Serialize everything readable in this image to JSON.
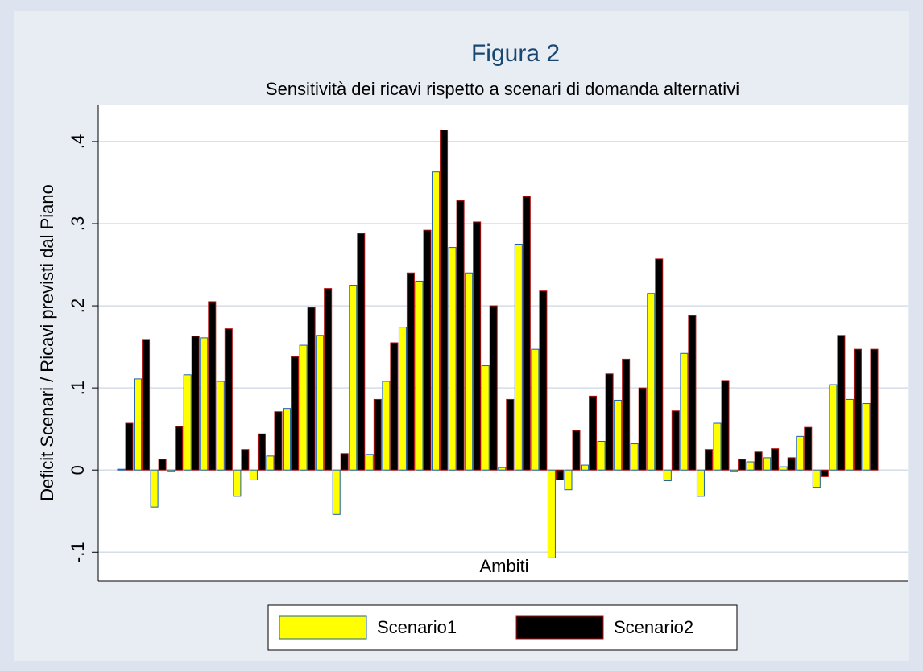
{
  "chart_data": {
    "type": "bar",
    "title": "Figura 2",
    "subtitle": "Sensitività dei ricavi rispetto a scenari di domanda alternativi",
    "y_label": "Deficit Scenari / Ricavi previsti dal Piano",
    "x_label": "Ambiti",
    "categories": [
      null,
      null,
      null,
      null,
      null,
      null,
      null,
      null,
      null,
      null,
      null,
      null,
      null,
      null,
      null,
      null,
      null,
      null,
      null,
      null,
      null,
      null,
      null,
      null,
      null,
      null,
      null,
      null,
      null,
      null,
      null,
      null,
      null,
      null,
      null,
      null,
      null,
      null,
      null,
      null,
      null,
      null,
      null,
      null,
      null,
      null
    ],
    "series": [
      {
        "name": "Scenario1",
        "color": "#ffff00",
        "values": [
          0.001,
          0.111,
          -0.045,
          -0.002,
          0.116,
          0.161,
          0.108,
          -0.032,
          -0.012,
          0.017,
          0.075,
          0.152,
          0.164,
          -0.054,
          0.225,
          0.019,
          0.108,
          0.174,
          0.23,
          0.363,
          0.271,
          0.24,
          0.127,
          0.003,
          0.275,
          0.147,
          -0.107,
          -0.024,
          0.006,
          0.035,
          0.085,
          0.032,
          0.215,
          -0.013,
          0.142,
          -0.032,
          0.057,
          -0.002,
          0.01,
          0.015,
          0.004,
          0.041,
          -0.021,
          0.104,
          0.086,
          0.081
        ]
      },
      {
        "name": "Scenario2",
        "color": "#000000",
        "values": [
          0.057,
          0.159,
          0.013,
          0.053,
          0.163,
          0.205,
          0.172,
          0.025,
          0.044,
          0.071,
          0.138,
          0.198,
          0.221,
          0.02,
          0.288,
          0.086,
          0.155,
          0.24,
          0.292,
          0.414,
          0.328,
          0.302,
          0.2,
          0.086,
          0.333,
          0.218,
          -0.012,
          0.048,
          0.09,
          0.117,
          0.135,
          0.1,
          0.257,
          0.072,
          0.188,
          0.025,
          0.109,
          0.013,
          0.022,
          0.026,
          0.015,
          0.052,
          -0.008,
          0.164,
          0.147,
          0.147
        ]
      }
    ],
    "ylim": [
      -0.135,
      0.445
    ],
    "yticks": [
      {
        "value": -0.1,
        "label": "-.1"
      },
      0,
      {
        "value": 0.1,
        "label": ".1"
      },
      {
        "value": 0.2,
        "label": ".2"
      },
      {
        "value": 0.3,
        "label": ".3"
      },
      {
        "value": 0.4,
        "label": ".4"
      }
    ],
    "grid": true
  }
}
